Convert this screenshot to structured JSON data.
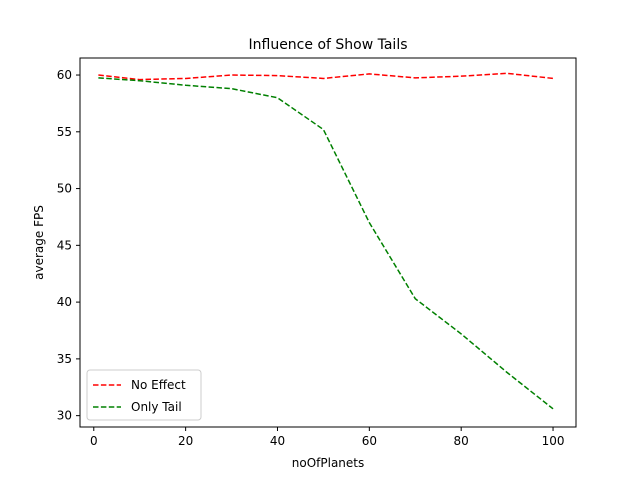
{
  "chart_data": {
    "type": "line",
    "title": "Influence of Show Tails",
    "xlabel": "noOfPlanets",
    "ylabel": "average FPS",
    "xlim": [
      -3,
      105
    ],
    "ylim": [
      29,
      61.5
    ],
    "xticks": [
      0,
      20,
      40,
      60,
      80,
      100
    ],
    "yticks": [
      30,
      35,
      40,
      45,
      50,
      55,
      60
    ],
    "grid": false,
    "legend_position": "lower-left",
    "series": [
      {
        "name": "No Effect",
        "color": "#ff0000",
        "style": "dashed",
        "x": [
          1,
          10,
          20,
          30,
          40,
          50,
          60,
          70,
          80,
          90,
          100
        ],
        "y": [
          60.0,
          59.6,
          59.7,
          60.0,
          59.95,
          59.7,
          60.1,
          59.75,
          59.9,
          60.15,
          59.7
        ]
      },
      {
        "name": "Only Tail",
        "color": "#008000",
        "style": "dashed",
        "x": [
          1,
          10,
          20,
          30,
          40,
          50,
          60,
          70,
          80,
          90,
          100
        ],
        "y": [
          59.75,
          59.5,
          59.1,
          58.8,
          58.0,
          55.2,
          47.0,
          40.3,
          37.2,
          33.8,
          30.6
        ]
      }
    ]
  }
}
